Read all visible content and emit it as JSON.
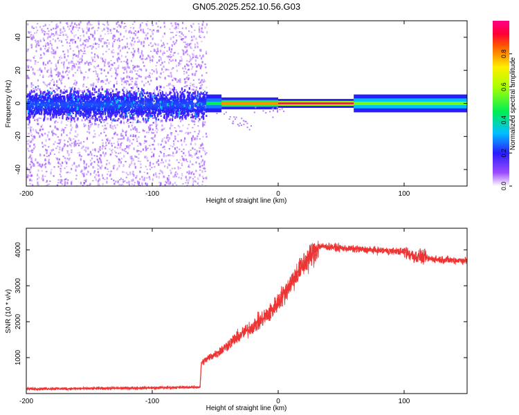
{
  "title": "GN05.2025.252.10.56.G03",
  "chart_data": [
    {
      "type": "heatmap",
      "xlabel": "Height of straight line (km)",
      "ylabel": "Frequency (Hz)",
      "xlim": [
        -200,
        150
      ],
      "ylim": [
        -50,
        50
      ],
      "xticks": [
        "-200",
        "-100",
        "0",
        "100"
      ],
      "xtick_values": [
        -200,
        -100,
        0,
        100
      ],
      "yticks": [
        "-40",
        "-20",
        "0",
        "20",
        "40"
      ],
      "ytick_values": [
        -40,
        -20,
        0,
        20,
        40
      ],
      "noise_region": {
        "x_range": [
          -200,
          -57
        ],
        "core_halfwidth_hz": 12
      },
      "signal_segments": [
        {
          "x_range": [
            -57,
            -45
          ],
          "halfwidth_hz": 3,
          "amplitude": 0.45
        },
        {
          "x_range": [
            -45,
            0
          ],
          "halfwidth_hz": 2,
          "amplitude": 0.8
        },
        {
          "x_range": [
            0,
            60
          ],
          "halfwidth_hz": 1.5,
          "amplitude": 0.95
        },
        {
          "x_range": [
            60,
            150
          ],
          "halfwidth_hz": 3,
          "amplitude": 0.55
        }
      ],
      "colorbar": {
        "label": "Normalized spectral amplitude",
        "range": [
          0,
          1
        ],
        "ticks": [
          "0.0",
          "0.2",
          "0.4",
          "0.6",
          "0.8"
        ],
        "tick_values": [
          0,
          0.2,
          0.4,
          0.6,
          0.8
        ]
      }
    },
    {
      "type": "line",
      "xlabel": "Height of straight line (km)",
      "ylabel": "SNR (10 * v/v)",
      "xlim": [
        -200,
        150
      ],
      "ylim": [
        0,
        4600
      ],
      "xticks": [
        "-200",
        "-100",
        "0",
        "100"
      ],
      "xtick_values": [
        -200,
        -100,
        0,
        100
      ],
      "yticks": [
        "1000",
        "2000",
        "3000",
        "4000"
      ],
      "ytick_values": [
        1000,
        2000,
        3000,
        4000
      ],
      "color": "#ee3333",
      "series": [
        {
          "name": "SNR",
          "x": [
            -200,
            -150,
            -100,
            -62,
            -61,
            -55,
            -45,
            -35,
            -25,
            -15,
            -5,
            5,
            15,
            25,
            32,
            40,
            60,
            80,
            100,
            110,
            115,
            120,
            135,
            150
          ],
          "y": [
            130,
            140,
            160,
            180,
            850,
            1000,
            1200,
            1500,
            1750,
            2000,
            2300,
            2800,
            3350,
            3800,
            4100,
            4080,
            4020,
            3980,
            3950,
            3800,
            3800,
            3750,
            3720,
            3700
          ]
        }
      ]
    }
  ]
}
